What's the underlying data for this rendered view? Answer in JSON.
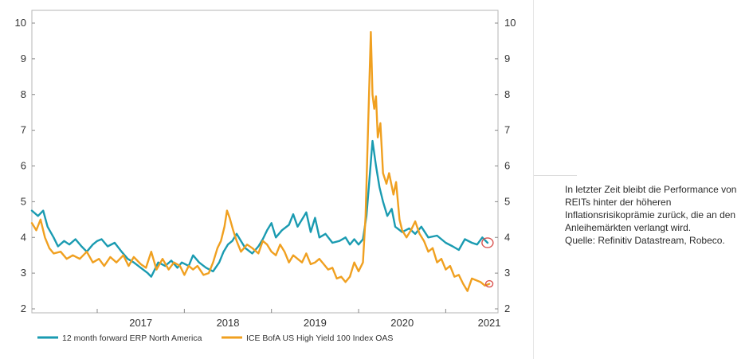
{
  "chart_data": {
    "type": "line",
    "title": "",
    "xlabel": "",
    "ylabel": "",
    "x_tick_labels": [
      "2017",
      "2018",
      "2019",
      "2020",
      "2021"
    ],
    "x_range": [
      2016.25,
      2021.6
    ],
    "ylim": [
      2,
      10
    ],
    "y_ticks": [
      "2",
      "3",
      "4",
      "5",
      "6",
      "7",
      "8",
      "9",
      "10"
    ],
    "y_ticks_right": [
      "2",
      "3",
      "4",
      "5",
      "6",
      "7",
      "8",
      "9",
      "10"
    ],
    "grid": false,
    "legend_position": "bottom-left",
    "series": [
      {
        "name": "12 month forward ERP North America",
        "color": "#1a9bb1",
        "points": [
          [
            2016.25,
            4.75
          ],
          [
            2016.32,
            4.6
          ],
          [
            2016.38,
            4.75
          ],
          [
            2016.43,
            4.3
          ],
          [
            2016.5,
            4.0
          ],
          [
            2016.55,
            3.75
          ],
          [
            2016.62,
            3.9
          ],
          [
            2016.68,
            3.8
          ],
          [
            2016.75,
            3.95
          ],
          [
            2016.82,
            3.75
          ],
          [
            2016.88,
            3.6
          ],
          [
            2016.95,
            3.8
          ],
          [
            2017.0,
            3.9
          ],
          [
            2017.05,
            3.95
          ],
          [
            2017.12,
            3.75
          ],
          [
            2017.2,
            3.85
          ],
          [
            2017.28,
            3.6
          ],
          [
            2017.35,
            3.4
          ],
          [
            2017.42,
            3.3
          ],
          [
            2017.5,
            3.15
          ],
          [
            2017.58,
            3.0
          ],
          [
            2017.62,
            2.9
          ],
          [
            2017.7,
            3.3
          ],
          [
            2017.78,
            3.2
          ],
          [
            2017.85,
            3.35
          ],
          [
            2017.92,
            3.15
          ],
          [
            2017.97,
            3.3
          ],
          [
            2018.05,
            3.2
          ],
          [
            2018.1,
            3.5
          ],
          [
            2018.17,
            3.3
          ],
          [
            2018.25,
            3.15
          ],
          [
            2018.33,
            3.05
          ],
          [
            2018.4,
            3.3
          ],
          [
            2018.45,
            3.6
          ],
          [
            2018.5,
            3.8
          ],
          [
            2018.55,
            3.9
          ],
          [
            2018.6,
            4.1
          ],
          [
            2018.65,
            3.9
          ],
          [
            2018.7,
            3.7
          ],
          [
            2018.78,
            3.55
          ],
          [
            2018.85,
            3.75
          ],
          [
            2018.9,
            3.95
          ],
          [
            2018.95,
            4.2
          ],
          [
            2019.0,
            4.4
          ],
          [
            2019.05,
            4.0
          ],
          [
            2019.12,
            4.2
          ],
          [
            2019.2,
            4.35
          ],
          [
            2019.25,
            4.65
          ],
          [
            2019.3,
            4.3
          ],
          [
            2019.35,
            4.5
          ],
          [
            2019.4,
            4.7
          ],
          [
            2019.45,
            4.15
          ],
          [
            2019.5,
            4.55
          ],
          [
            2019.55,
            4.0
          ],
          [
            2019.62,
            4.1
          ],
          [
            2019.7,
            3.85
          ],
          [
            2019.78,
            3.9
          ],
          [
            2019.85,
            4.0
          ],
          [
            2019.9,
            3.8
          ],
          [
            2019.95,
            3.95
          ],
          [
            2020.0,
            3.8
          ],
          [
            2020.05,
            3.95
          ],
          [
            2020.09,
            4.6
          ],
          [
            2020.12,
            5.5
          ],
          [
            2020.16,
            6.7
          ],
          [
            2020.2,
            6.0
          ],
          [
            2020.24,
            5.4
          ],
          [
            2020.28,
            5.0
          ],
          [
            2020.33,
            4.6
          ],
          [
            2020.38,
            4.8
          ],
          [
            2020.42,
            4.3
          ],
          [
            2020.5,
            4.15
          ],
          [
            2020.58,
            4.25
          ],
          [
            2020.65,
            4.1
          ],
          [
            2020.72,
            4.3
          ],
          [
            2020.8,
            4.0
          ],
          [
            2020.9,
            4.05
          ],
          [
            2021.0,
            3.85
          ],
          [
            2021.08,
            3.75
          ],
          [
            2021.15,
            3.65
          ],
          [
            2021.22,
            3.95
          ],
          [
            2021.3,
            3.85
          ],
          [
            2021.36,
            3.8
          ],
          [
            2021.42,
            4.0
          ],
          [
            2021.48,
            3.85
          ]
        ]
      },
      {
        "name": "ICE BofA US High Yield 100 Index OAS",
        "color": "#f0a020",
        "points": [
          [
            2016.25,
            4.4
          ],
          [
            2016.3,
            4.2
          ],
          [
            2016.35,
            4.5
          ],
          [
            2016.4,
            4.0
          ],
          [
            2016.45,
            3.7
          ],
          [
            2016.5,
            3.55
          ],
          [
            2016.58,
            3.6
          ],
          [
            2016.65,
            3.4
          ],
          [
            2016.72,
            3.5
          ],
          [
            2016.8,
            3.4
          ],
          [
            2016.88,
            3.6
          ],
          [
            2016.95,
            3.3
          ],
          [
            2017.02,
            3.4
          ],
          [
            2017.08,
            3.2
          ],
          [
            2017.15,
            3.45
          ],
          [
            2017.22,
            3.3
          ],
          [
            2017.3,
            3.5
          ],
          [
            2017.36,
            3.2
          ],
          [
            2017.42,
            3.45
          ],
          [
            2017.5,
            3.25
          ],
          [
            2017.56,
            3.15
          ],
          [
            2017.62,
            3.6
          ],
          [
            2017.68,
            3.1
          ],
          [
            2017.75,
            3.4
          ],
          [
            2017.82,
            3.1
          ],
          [
            2017.88,
            3.3
          ],
          [
            2017.95,
            3.2
          ],
          [
            2018.0,
            2.95
          ],
          [
            2018.05,
            3.2
          ],
          [
            2018.1,
            3.1
          ],
          [
            2018.15,
            3.2
          ],
          [
            2018.22,
            2.95
          ],
          [
            2018.28,
            3.0
          ],
          [
            2018.33,
            3.3
          ],
          [
            2018.38,
            3.7
          ],
          [
            2018.42,
            3.9
          ],
          [
            2018.46,
            4.3
          ],
          [
            2018.49,
            4.75
          ],
          [
            2018.52,
            4.55
          ],
          [
            2018.56,
            4.2
          ],
          [
            2018.6,
            3.9
          ],
          [
            2018.65,
            3.6
          ],
          [
            2018.72,
            3.8
          ],
          [
            2018.78,
            3.7
          ],
          [
            2018.85,
            3.55
          ],
          [
            2018.9,
            3.9
          ],
          [
            2018.95,
            3.8
          ],
          [
            2019.0,
            3.6
          ],
          [
            2019.05,
            3.5
          ],
          [
            2019.1,
            3.8
          ],
          [
            2019.15,
            3.6
          ],
          [
            2019.2,
            3.3
          ],
          [
            2019.25,
            3.5
          ],
          [
            2019.3,
            3.4
          ],
          [
            2019.35,
            3.3
          ],
          [
            2019.4,
            3.55
          ],
          [
            2019.45,
            3.25
          ],
          [
            2019.5,
            3.3
          ],
          [
            2019.55,
            3.4
          ],
          [
            2019.6,
            3.25
          ],
          [
            2019.65,
            3.1
          ],
          [
            2019.7,
            3.15
          ],
          [
            2019.75,
            2.85
          ],
          [
            2019.8,
            2.9
          ],
          [
            2019.85,
            2.75
          ],
          [
            2019.9,
            2.9
          ],
          [
            2019.95,
            3.3
          ],
          [
            2020.0,
            3.05
          ],
          [
            2020.05,
            3.3
          ],
          [
            2020.08,
            4.6
          ],
          [
            2020.11,
            7.2
          ],
          [
            2020.14,
            9.75
          ],
          [
            2020.16,
            8.0
          ],
          [
            2020.18,
            7.6
          ],
          [
            2020.2,
            7.95
          ],
          [
            2020.22,
            6.8
          ],
          [
            2020.25,
            7.2
          ],
          [
            2020.28,
            5.8
          ],
          [
            2020.32,
            5.5
          ],
          [
            2020.35,
            5.8
          ],
          [
            2020.4,
            5.2
          ],
          [
            2020.43,
            5.55
          ],
          [
            2020.47,
            4.5
          ],
          [
            2020.5,
            4.2
          ],
          [
            2020.55,
            4.0
          ],
          [
            2020.6,
            4.2
          ],
          [
            2020.65,
            4.45
          ],
          [
            2020.7,
            4.1
          ],
          [
            2020.75,
            3.9
          ],
          [
            2020.8,
            3.6
          ],
          [
            2020.85,
            3.7
          ],
          [
            2020.9,
            3.3
          ],
          [
            2020.95,
            3.4
          ],
          [
            2021.0,
            3.1
          ],
          [
            2021.05,
            3.2
          ],
          [
            2021.1,
            2.9
          ],
          [
            2021.15,
            2.95
          ],
          [
            2021.2,
            2.7
          ],
          [
            2021.25,
            2.5
          ],
          [
            2021.3,
            2.85
          ],
          [
            2021.35,
            2.8
          ],
          [
            2021.4,
            2.75
          ],
          [
            2021.45,
            2.65
          ],
          [
            2021.5,
            2.7
          ]
        ]
      }
    ],
    "annotations": [
      {
        "type": "circle",
        "series": "12 month forward ERP North America",
        "x": 2021.48,
        "y": 3.85,
        "color": "#d9534f"
      },
      {
        "type": "circle",
        "series": "ICE BofA US High Yield 100 Index OAS",
        "x": 2021.5,
        "y": 2.7,
        "color": "#d9534f"
      }
    ]
  },
  "caption": {
    "line1": "In letzter Zeit bleibt die Performance von",
    "line2": "REITs hinter der höheren",
    "line3": "Inflationsrisikoprämie zurück, die an den",
    "line4": "Anleihemärkten verlangt wird.",
    "line5": "Quelle: Refinitiv Datastream, Robeco."
  }
}
